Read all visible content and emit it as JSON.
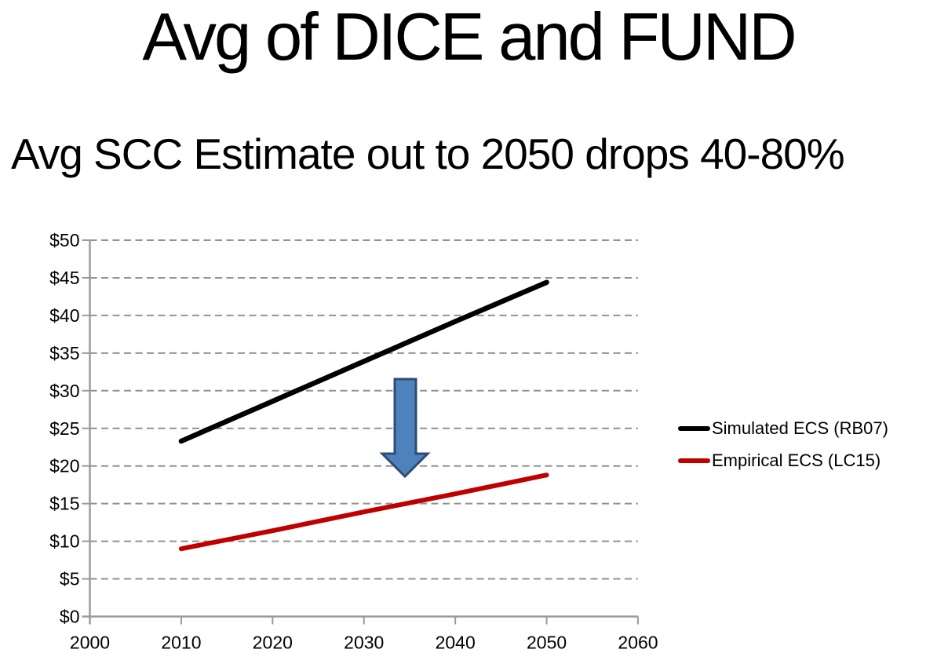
{
  "title": "Avg of DICE and FUND",
  "subtitle": "Avg SCC Estimate out to 2050 drops 40-80%",
  "chart_data": {
    "type": "line",
    "title": "Avg of DICE and FUND",
    "subtitle": "Avg SCC Estimate out to 2050 drops 40-80%",
    "x": [
      2010,
      2020,
      2030,
      2040,
      2050
    ],
    "series": [
      {
        "name": "Simulated ECS (RB07)",
        "color": "#000000",
        "stroke_width": 6.5,
        "values": [
          23.3,
          28.6,
          33.9,
          39.2,
          44.4
        ]
      },
      {
        "name": "Empirical ECS (LC15)",
        "color": "#c00000",
        "stroke_width": 6,
        "values": [
          9.0,
          11.4,
          13.9,
          16.3,
          18.8
        ]
      }
    ],
    "xlabel": "",
    "ylabel": "",
    "xlim": [
      2000,
      2060
    ],
    "ylim": [
      0,
      50
    ],
    "x_ticks": [
      2000,
      2010,
      2020,
      2030,
      2040,
      2050,
      2060
    ],
    "y_ticks": [
      {
        "label": "$0",
        "value": 0
      },
      {
        "label": "$5",
        "value": 5
      },
      {
        "label": "$10",
        "value": 10
      },
      {
        "label": "$15",
        "value": 15
      },
      {
        "label": "$20",
        "value": 20
      },
      {
        "label": "$25",
        "value": 25
      },
      {
        "label": "$30",
        "value": 30
      },
      {
        "label": "$35",
        "value": 35
      },
      {
        "label": "$40",
        "value": 40
      },
      {
        "label": "$45",
        "value": 45
      },
      {
        "label": "$50",
        "value": 50
      }
    ],
    "grid": "horizontal-dashed",
    "legend_position": "right",
    "annotation": {
      "shape": "down-block-arrow",
      "fill": "#4f81bd",
      "border": "#2c4d75"
    }
  },
  "colors": {
    "axis": "#9b9b9b",
    "gridline": "#929292",
    "background": "#ffffff",
    "text": "#000000"
  }
}
